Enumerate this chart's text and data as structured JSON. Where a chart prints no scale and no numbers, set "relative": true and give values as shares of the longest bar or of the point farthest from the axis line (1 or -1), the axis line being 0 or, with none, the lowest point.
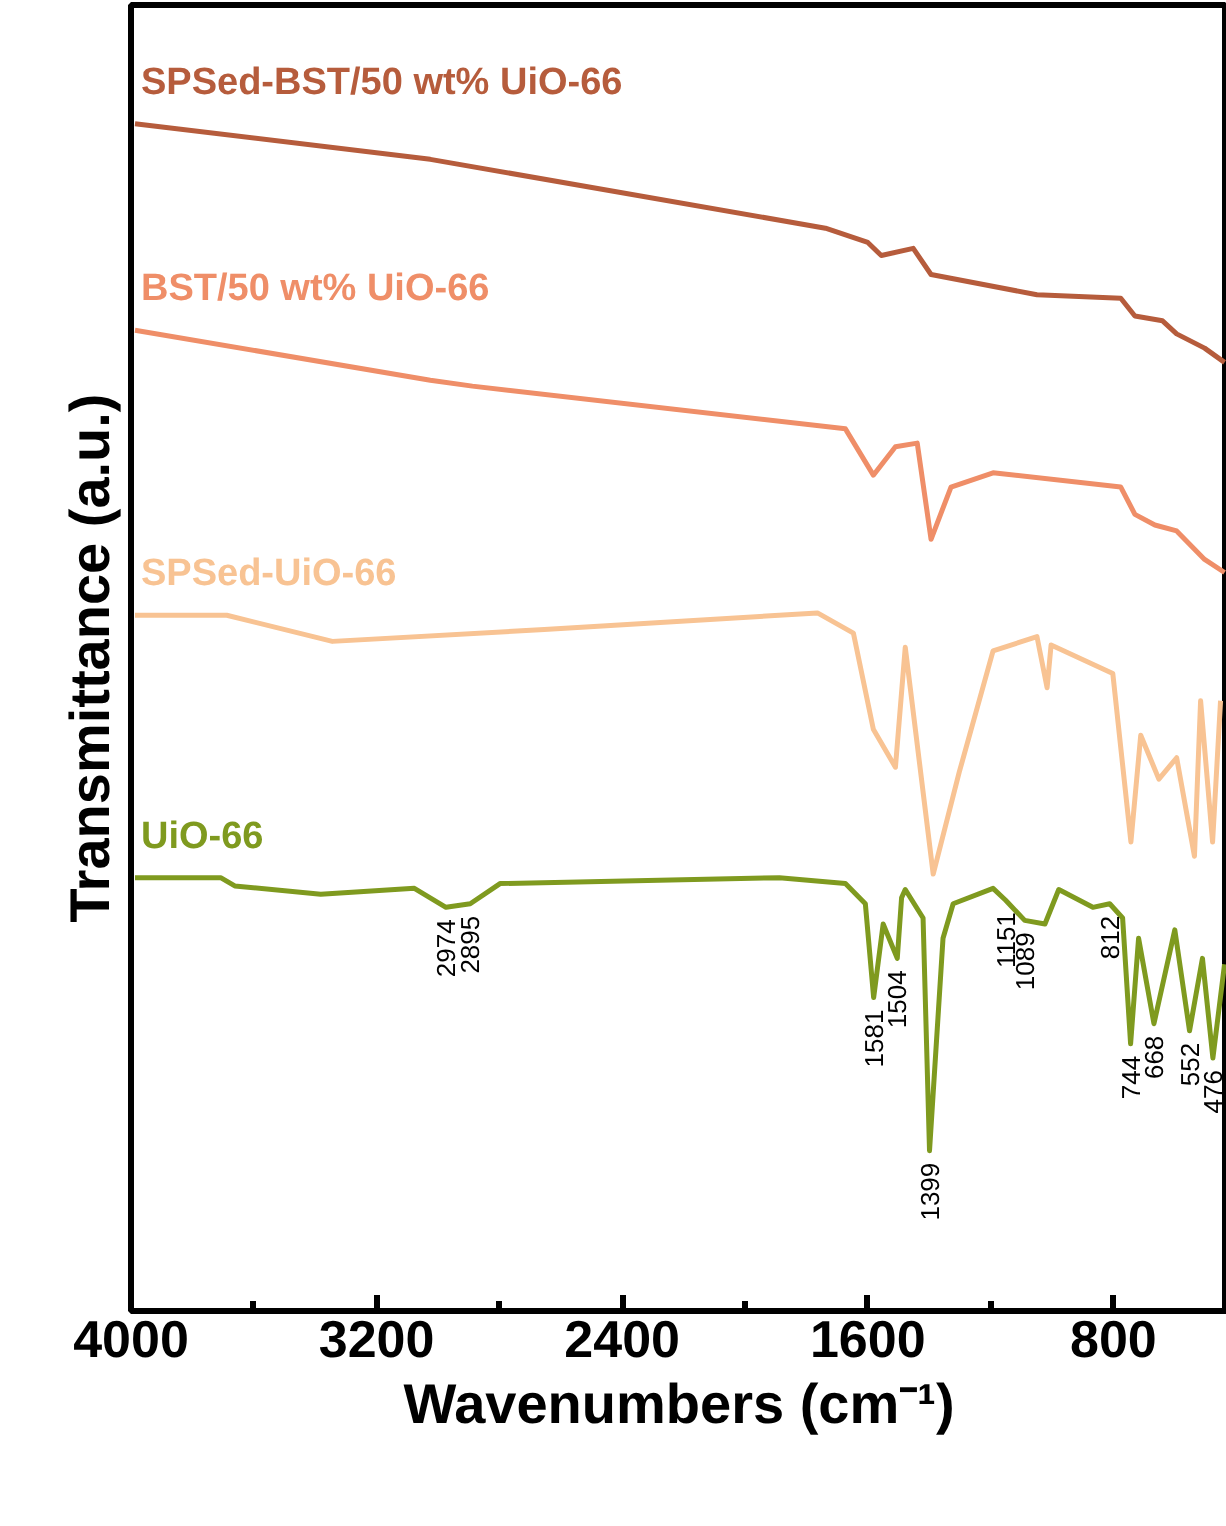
{
  "chart_data": {
    "type": "line",
    "relative": true,
    "xlabel": "Wavenumbers (cm⁻¹)",
    "ylabel": "Transmittance (a.u.)",
    "xlim": [
      4000,
      430
    ],
    "xticks": [
      4000,
      {
        "value": 3600,
        "label": null
      },
      3200,
      {
        "value": 2800,
        "label": null
      },
      2400,
      {
        "value": 2000,
        "label": null
      },
      1600,
      {
        "value": 1200,
        "label": null
      },
      800
    ],
    "grid": false,
    "legend": false,
    "line_style": "solid",
    "series": [
      {
        "name": "SPSed-BST/50 wt% UiO-66",
        "color": "#b65c3c",
        "x": [
          3987,
          3025,
          1738,
          1600,
          1556,
          1452,
          1394,
          1049,
          776,
          730,
          640,
          594,
          503,
          438
        ],
        "values": [
          1.0,
          0.97,
          0.912,
          0.9,
          0.889,
          0.895,
          0.873,
          0.856,
          0.853,
          0.838,
          0.834,
          0.823,
          0.811,
          0.799
        ]
      },
      {
        "name": "BST/50 wt% UiO-66",
        "color": "#ef8e68",
        "x": [
          3987,
          3025,
          2888,
          1673,
          1582,
          1510,
          1439,
          1394,
          1329,
          1192,
          776,
          730,
          665,
          594,
          503,
          438
        ],
        "values": [
          0.826,
          0.784,
          0.779,
          0.743,
          0.704,
          0.728,
          0.731,
          0.65,
          0.694,
          0.706,
          0.694,
          0.671,
          0.662,
          0.657,
          0.633,
          0.622
        ]
      },
      {
        "name": "SPSed-UiO-66",
        "color": "#f8c393",
        "x": [
          3987,
          3688,
          3344,
          2654,
          1764,
          1647,
          1582,
          1510,
          1478,
          1387,
          1302,
          1192,
          1049,
          1016,
          1003,
          802,
          743,
          711,
          652,
          594,
          536,
          516,
          477,
          451
        ],
        "values": [
          0.586,
          0.586,
          0.564,
          0.574,
          0.588,
          0.571,
          0.49,
          0.458,
          0.559,
          0.368,
          0.454,
          0.556,
          0.568,
          0.525,
          0.561,
          0.537,
          0.395,
          0.485,
          0.448,
          0.466,
          0.383,
          0.514,
          0.395,
          0.514
        ]
      },
      {
        "name": "UiO-66",
        "color": "#7f9a1f",
        "x": [
          3987,
          3708,
          3662,
          3382,
          3077,
          2974,
          2895,
          2798,
          1888,
          1673,
          1608,
          1581,
          1550,
          1504,
          1490,
          1478,
          1420,
          1399,
          1355,
          1322,
          1192,
          1151,
          1089,
          1023,
          978,
          867,
          812,
          770,
          744,
          718,
          668,
          600,
          552,
          510,
          476,
          438
        ],
        "values": [
          0.365,
          0.365,
          0.358,
          0.351,
          0.356,
          0.34,
          0.343,
          0.36,
          0.365,
          0.36,
          0.343,
          0.264,
          0.326,
          0.297,
          0.348,
          0.355,
          0.331,
          0.135,
          0.314,
          0.343,
          0.356,
          0.346,
          0.329,
          0.326,
          0.355,
          0.34,
          0.343,
          0.331,
          0.225,
          0.314,
          0.242,
          0.321,
          0.236,
          0.297,
          0.213,
          0.292
        ]
      }
    ],
    "annotations": [
      {
        "text": "2974",
        "x": 2974,
        "y": 0.34
      },
      {
        "text": "2895",
        "x": 2895,
        "y": 0.343
      },
      {
        "text": "1581",
        "x": 1581,
        "y": 0.264
      },
      {
        "text": "1504",
        "x": 1504,
        "y": 0.297
      },
      {
        "text": "1399",
        "x": 1399,
        "y": 0.135
      },
      {
        "text": "1151",
        "x": 1151,
        "y": 0.346
      },
      {
        "text": "1089",
        "x": 1089,
        "y": 0.329
      },
      {
        "text": "812",
        "x": 812,
        "y": 0.343
      },
      {
        "text": "744",
        "x": 744,
        "y": 0.225
      },
      {
        "text": "668",
        "x": 668,
        "y": 0.242
      },
      {
        "text": "552",
        "x": 552,
        "y": 0.236
      },
      {
        "text": "476",
        "x": 476,
        "y": 0.213
      }
    ]
  }
}
